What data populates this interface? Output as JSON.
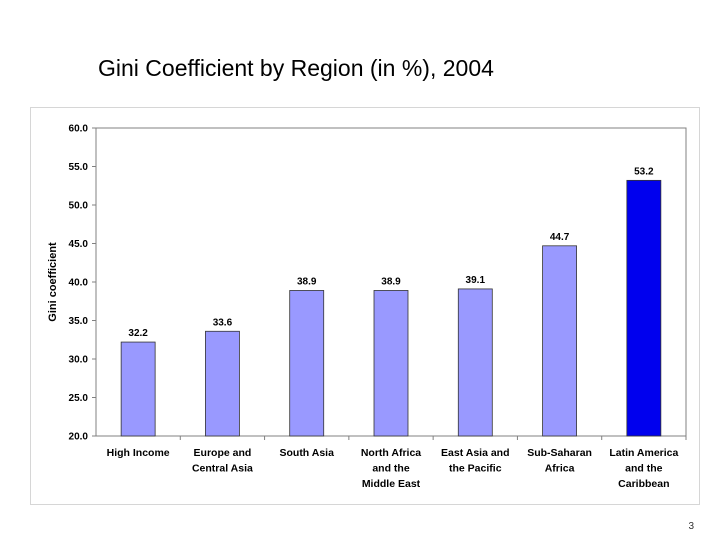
{
  "slide": {
    "title": "Gini Coefficient by Region (in %), 2004",
    "page_number": "3"
  },
  "colors": {
    "bar_default": "#9999ff",
    "bar_highlight": "#0000ee",
    "bar_outline": "#333333",
    "axis": "#808080",
    "text": "#000000"
  },
  "chart_data": {
    "type": "bar",
    "title": "",
    "xlabel": "",
    "ylabel": "Gini coefficient",
    "ylim": [
      20.0,
      60.0
    ],
    "yticks": [
      "20.0",
      "25.0",
      "30.0",
      "35.0",
      "40.0",
      "45.0",
      "50.0",
      "55.0",
      "60.0"
    ],
    "grid": false,
    "legend": "none",
    "categories": [
      [
        "High Income"
      ],
      [
        "Europe and",
        "Central Asia"
      ],
      [
        "South Asia"
      ],
      [
        "North Africa",
        "and the",
        "Middle East"
      ],
      [
        "East Asia and",
        "the Pacific"
      ],
      [
        "Sub-Saharan",
        "Africa"
      ],
      [
        "Latin America",
        "and the",
        "Caribbean"
      ]
    ],
    "values": [
      32.2,
      33.6,
      38.9,
      38.9,
      39.1,
      44.7,
      53.2
    ],
    "data_labels": [
      "32.2",
      "33.6",
      "38.9",
      "38.9",
      "39.1",
      "44.7",
      "53.2"
    ],
    "highlighted_index": 6
  }
}
